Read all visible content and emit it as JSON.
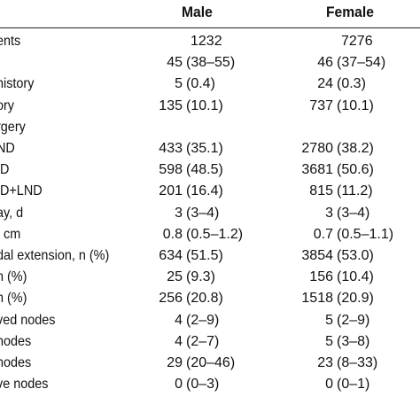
{
  "columns": {
    "male": "Male",
    "female": "Female"
  },
  "rows": [
    {
      "label": "ents",
      "male_num": "1232",
      "male_paren": "",
      "female_num": "7276",
      "female_paren": "",
      "center": true
    },
    {
      "label": "",
      "male_num": "45",
      "male_paren": "(38–55)",
      "female_num": "46",
      "female_paren": "(37–54)"
    },
    {
      "label": "history",
      "male_num": "5",
      "male_paren": "(0.4)",
      "female_num": "24",
      "female_paren": "(0.3)"
    },
    {
      "label": "ory",
      "male_num": "135",
      "male_paren": "(10.1)",
      "female_num": "737",
      "female_paren": "(10.1)"
    },
    {
      "label": "rgery",
      "male_num": "",
      "male_paren": "",
      "female_num": "",
      "female_paren": ""
    },
    {
      "label": "ND",
      "male_num": "433",
      "male_paren": "(35.1)",
      "female_num": "2780",
      "female_paren": "(38.2)"
    },
    {
      "label": "ID",
      "male_num": "598",
      "male_paren": "(48.5)",
      "female_num": "3681",
      "female_paren": "(50.6)"
    },
    {
      "label": "ID+LND",
      "male_num": "201",
      "male_paren": "(16.4)",
      "female_num": "815",
      "female_paren": "(11.2)"
    },
    {
      "label": "ay, d",
      "male_num": "3",
      "male_paren": "(3–4)",
      "female_num": "3",
      "female_paren": "(3–4)"
    },
    {
      "label": ", cm",
      "male_num": "0.8",
      "male_paren": "(0.5–1.2)",
      "female_num": "0.7",
      "female_paren": "(0.5–1.1)"
    },
    {
      "label": "dal extension, n (%)",
      "male_num": "634",
      "male_paren": "(51.5)",
      "female_num": "3854",
      "female_paren": "(53.0)"
    },
    {
      "label": "n (%)",
      "male_num": "25",
      "male_paren": "(9.3)",
      "female_num": "156",
      "female_paren": "(10.4)"
    },
    {
      "label": "n (%)",
      "male_num": "256",
      "male_paren": "(20.8)",
      "female_num": "1518",
      "female_paren": "(20.9)"
    },
    {
      "label": "ved nodes",
      "male_num": "4",
      "male_paren": "(2–9)",
      "female_num": "5",
      "female_paren": "(2–9)"
    },
    {
      "label": "nodes",
      "male_num": "4",
      "male_paren": "(2–7)",
      "female_num": "5",
      "female_paren": "(3–8)"
    },
    {
      "label": "nodes",
      "male_num": "29",
      "male_paren": "(20–46)",
      "female_num": "23",
      "female_paren": "(8–33)"
    },
    {
      "label": "ve nodes",
      "male_num": "0",
      "male_paren": "(0–3)",
      "female_num": "0",
      "female_paren": "(0–1)"
    }
  ]
}
